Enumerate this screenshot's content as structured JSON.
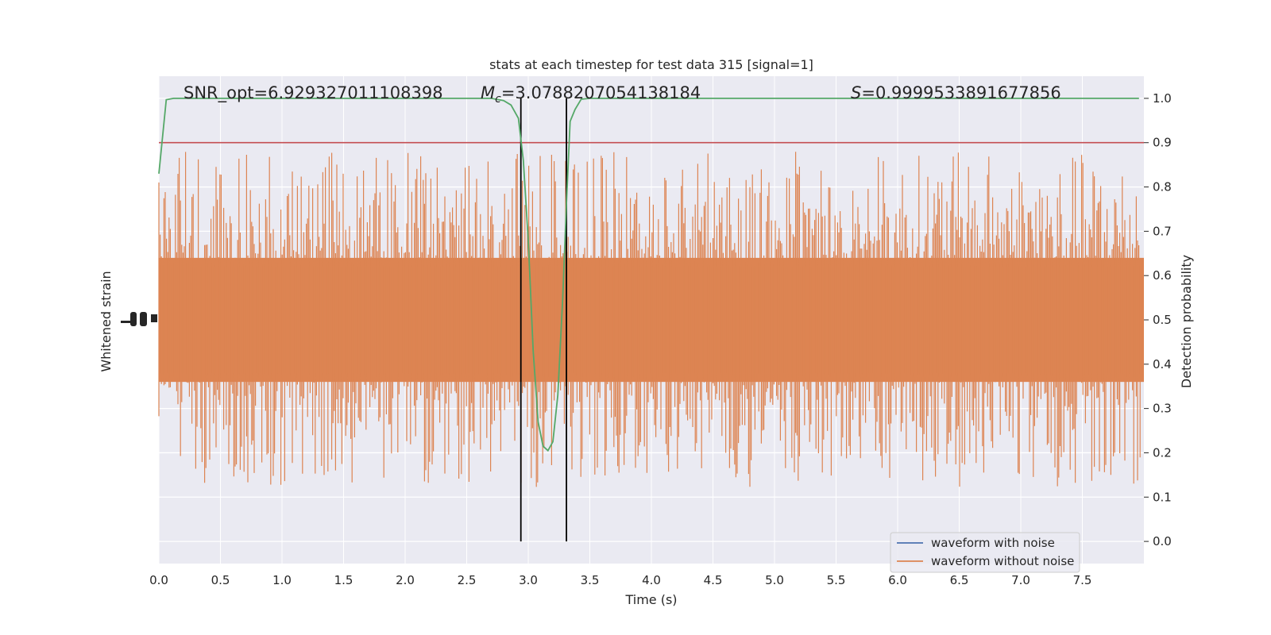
{
  "chart_data": {
    "type": "line",
    "title": "stats at each timestep for test data 315 [signal=1]",
    "xlabel": "Time (s)",
    "ylabel_left": "Whitened strain",
    "ylabel_right": "Detection probability",
    "xlim": [
      0,
      8.0
    ],
    "ylim_right": [
      -0.05,
      1.05
    ],
    "x_ticks": [
      "0.0",
      "0.5",
      "1.0",
      "1.5",
      "2.0",
      "2.5",
      "3.0",
      "3.5",
      "4.0",
      "4.5",
      "5.0",
      "5.5",
      "6.0",
      "6.5",
      "7.0",
      "7.5"
    ],
    "y_right_ticks": [
      "0.0",
      "0.1",
      "0.2",
      "0.3",
      "0.4",
      "0.5",
      "0.6",
      "0.7",
      "0.8",
      "0.9",
      "1.0"
    ],
    "grid": true,
    "annotations": {
      "snr": "SNR_opt=6.929327011108398",
      "mc_symbol": "M",
      "mc_sub": "c",
      "mc_value": "=3.0788207054138184",
      "s_symbol": "S",
      "s_value": "=0.9999533891677856"
    },
    "threshold": 0.9,
    "vlines": [
      2.94,
      3.31
    ],
    "detection_probability": {
      "x": [
        0.0,
        0.06,
        0.12,
        0.2,
        0.5,
        1.0,
        1.5,
        2.0,
        2.5,
        2.7,
        2.8,
        2.86,
        2.92,
        2.96,
        3.0,
        3.04,
        3.08,
        3.12,
        3.16,
        3.2,
        3.24,
        3.28,
        3.31,
        3.34,
        3.38,
        3.43,
        3.5,
        4.0,
        5.0,
        5.5,
        6.0,
        6.5,
        7.0,
        7.5,
        7.96
      ],
      "y": [
        0.83,
        0.997,
        1.0,
        1.0,
        1.0,
        1.0,
        1.0,
        1.0,
        1.0,
        1.0,
        0.995,
        0.985,
        0.955,
        0.86,
        0.68,
        0.43,
        0.27,
        0.215,
        0.205,
        0.225,
        0.33,
        0.55,
        0.76,
        0.948,
        0.975,
        0.998,
        1.0,
        1.0,
        1.0,
        1.0,
        1.0,
        1.0,
        1.0,
        1.0,
        1.0
      ]
    },
    "legend": {
      "placement": "lower-right",
      "entries": [
        {
          "label": "waveform with noise",
          "color": "#4c72b0"
        },
        {
          "label": "waveform without noise",
          "color": "#dd8452"
        }
      ]
    },
    "colors": {
      "background": "#eaeaf2",
      "grid": "#ffffff",
      "waveform_without_noise": "#dd8452",
      "waveform_with_noise": "#4c72b0",
      "probability": "#55a868",
      "threshold": "#c44e52",
      "vline": "#000000"
    }
  }
}
